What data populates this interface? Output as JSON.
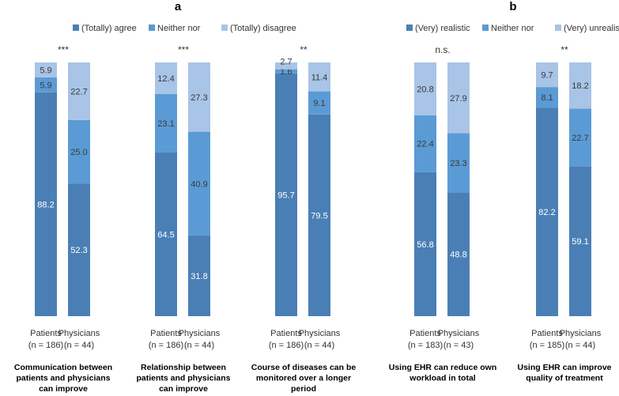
{
  "colors": {
    "dark": "#4a7fb5",
    "mid": "#5b9bd5",
    "light": "#a8c4e6"
  },
  "chart_data": {
    "type": "bar",
    "stacked": true,
    "ylim": [
      0,
      100
    ],
    "panels": [
      {
        "letter": "a",
        "legend": [
          "(Totally) agree",
          "Neither nor",
          "(Totally) disagree"
        ],
        "groups": [
          {
            "label_lines": [
              "Communication between",
              "patients and physicians",
              "can improve"
            ],
            "significance": "***",
            "bars": [
              {
                "cat_line1": "Patients",
                "cat_line2": "(n = 186)",
                "values": [
                  88.2,
                  5.9,
                  5.9
                ],
                "labels": [
                  "88.2",
                  "5.9",
                  "5.9"
                ]
              },
              {
                "cat_line1": "Physicians",
                "cat_line2": "(n = 44)",
                "values": [
                  52.3,
                  25.0,
                  22.7
                ],
                "labels": [
                  "52.3",
                  "25.0",
                  "22.7"
                ]
              }
            ]
          },
          {
            "label_lines": [
              "Relationship between",
              "patients and physicians",
              "can improve"
            ],
            "significance": "***",
            "bars": [
              {
                "cat_line1": "Patients",
                "cat_line2": "(n = 186)",
                "values": [
                  64.5,
                  23.1,
                  12.4
                ],
                "labels": [
                  "64.5",
                  "23.1",
                  "12.4"
                ]
              },
              {
                "cat_line1": "Physicians",
                "cat_line2": "(n = 44)",
                "values": [
                  31.8,
                  40.9,
                  27.3
                ],
                "labels": [
                  "31.8",
                  "40.9",
                  "27.3"
                ]
              }
            ]
          },
          {
            "label_lines": [
              "Course of diseases can be",
              "monitored over a longer",
              "period"
            ],
            "significance": "**",
            "bars": [
              {
                "cat_line1": "Patients",
                "cat_line2": "(n = 186)",
                "values": [
                  95.7,
                  1.6,
                  2.7
                ],
                "labels": [
                  "95.7",
                  "1.6",
                  "2.7"
                ]
              },
              {
                "cat_line1": "Physicians",
                "cat_line2": "(n = 44)",
                "values": [
                  79.5,
                  9.1,
                  11.4
                ],
                "labels": [
                  "79.5",
                  "9.1",
                  "11.4"
                ]
              }
            ]
          }
        ]
      },
      {
        "letter": "b",
        "legend": [
          "(Very) realistic",
          "Neither nor",
          "(Very) unrealistic"
        ],
        "groups": [
          {
            "label_lines": [
              "Using EHR can reduce own",
              "workload in total"
            ],
            "significance": "n.s.",
            "bars": [
              {
                "cat_line1": "Patients",
                "cat_line2": "(n = 183)",
                "values": [
                  56.8,
                  22.4,
                  20.8
                ],
                "labels": [
                  "56.8",
                  "22.4",
                  "20.8"
                ]
              },
              {
                "cat_line1": "Physicians",
                "cat_line2": "(n = 43)",
                "values": [
                  48.8,
                  23.3,
                  27.9
                ],
                "labels": [
                  "48.8",
                  "23.3",
                  "27.9"
                ]
              }
            ]
          },
          {
            "label_lines": [
              "Using EHR can improve",
              "quality of treatment"
            ],
            "significance": "**",
            "bars": [
              {
                "cat_line1": "Patients",
                "cat_line2": "(n = 185)",
                "values": [
                  82.2,
                  8.1,
                  9.7
                ],
                "labels": [
                  "82.2",
                  "8.1",
                  "9.7"
                ]
              },
              {
                "cat_line1": "Physicians",
                "cat_line2": "(n = 44)",
                "values": [
                  59.1,
                  22.7,
                  18.2
                ],
                "labels": [
                  "59.1",
                  "22.7",
                  "18.2"
                ]
              }
            ]
          }
        ]
      }
    ]
  }
}
